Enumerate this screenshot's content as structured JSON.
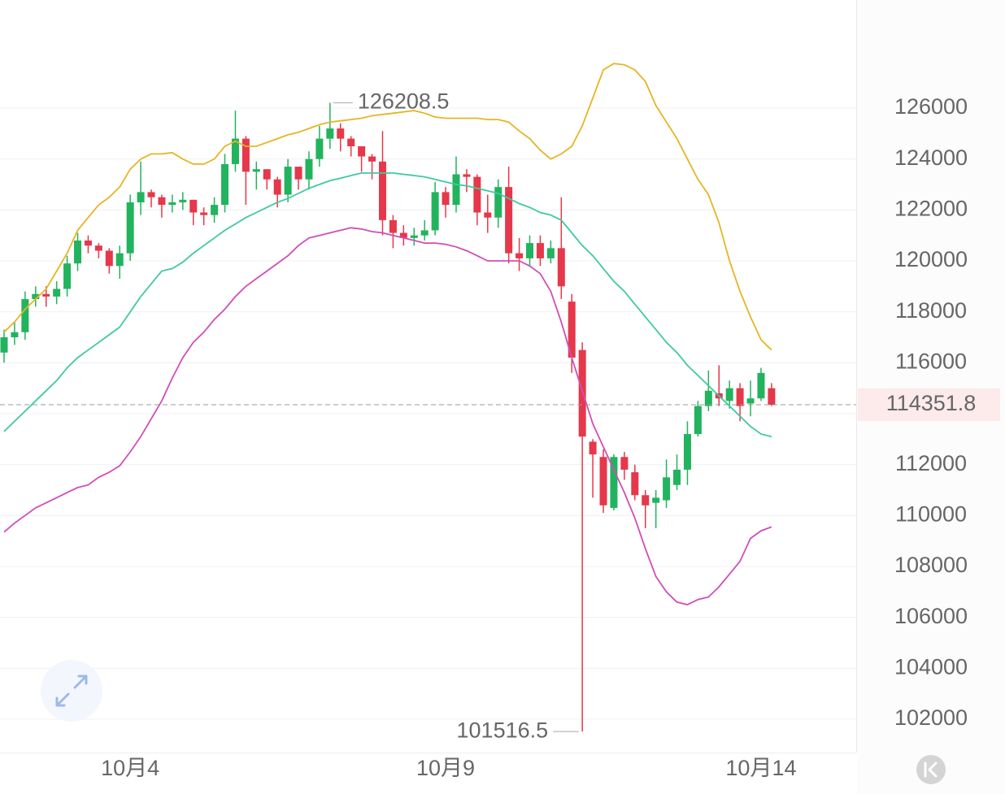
{
  "chart_data": {
    "type": "candlestick",
    "categories": [
      null,
      null,
      null,
      null,
      null,
      null,
      null,
      null,
      null,
      null,
      null,
      null,
      "10月4",
      null,
      null,
      null,
      null,
      null,
      null,
      null,
      null,
      null,
      null,
      null,
      null,
      null,
      null,
      null,
      null,
      null,
      null,
      null,
      null,
      null,
      null,
      null,
      null,
      null,
      null,
      null,
      null,
      null,
      "10月9",
      null,
      null,
      null,
      null,
      null,
      null,
      null,
      null,
      null,
      null,
      null,
      null,
      null,
      null,
      null,
      null,
      null,
      null,
      null,
      null,
      null,
      null,
      null,
      null,
      null,
      null,
      null,
      null,
      null,
      "10月14",
      null
    ],
    "candles": {
      "up_color": "#22b35e",
      "down_color": "#e5384a",
      "open": [
        116400,
        117000,
        117200,
        118500,
        118700,
        118600,
        118900,
        119900,
        120800,
        120600,
        120400,
        119800,
        120300,
        122300,
        122700,
        122500,
        122200,
        122300,
        122400,
        121900,
        121800,
        122200,
        123800,
        124800,
        123500,
        123600,
        123200,
        122600,
        123700,
        123200,
        124000,
        124800,
        125200,
        124800,
        124500,
        124100,
        123900,
        121600,
        121100,
        120900,
        121000,
        121200,
        122700,
        122200,
        123400,
        123300,
        121900,
        121700,
        122900,
        120300,
        120100,
        120700,
        120100,
        120500,
        118400,
        116500,
        112900,
        112300,
        110300,
        112300,
        111700,
        110800,
        110500,
        110600,
        111200,
        111800,
        113200,
        114300,
        114800,
        114500,
        115000,
        114400,
        114600,
        115000
      ],
      "high": [
        117300,
        117600,
        118800,
        119000,
        119000,
        119200,
        120200,
        121100,
        121000,
        120700,
        120500,
        120600,
        122600,
        123900,
        122800,
        122600,
        122600,
        122700,
        122400,
        122100,
        122500,
        124200,
        125900,
        124900,
        123900,
        123600,
        123300,
        124000,
        123600,
        124300,
        125300,
        126208.5,
        125400,
        124900,
        124500,
        124200,
        125100,
        121800,
        121400,
        121300,
        121600,
        123100,
        122900,
        124100,
        123600,
        123400,
        122600,
        123200,
        123700,
        120900,
        121000,
        121000,
        120800,
        122500,
        118700,
        116800,
        113000,
        112600,
        112400,
        112500,
        112000,
        111000,
        111000,
        112200,
        112400,
        113700,
        114500,
        115700,
        115900,
        115300,
        115200,
        115300,
        115800,
        115200
      ],
      "low": [
        116000,
        116700,
        116900,
        118200,
        118200,
        118300,
        118600,
        119600,
        120300,
        120100,
        119500,
        119300,
        120000,
        121800,
        122100,
        121700,
        121900,
        122000,
        121400,
        121400,
        121500,
        121900,
        123500,
        122200,
        122800,
        122800,
        122100,
        122300,
        122800,
        122800,
        123700,
        124400,
        124300,
        124100,
        123500,
        123200,
        121000,
        120500,
        120600,
        120600,
        120800,
        121000,
        121700,
        121900,
        122700,
        121400,
        121100,
        121300,
        119900,
        119600,
        119800,
        119800,
        119900,
        118500,
        115600,
        101516.5,
        110700,
        110100,
        110200,
        111400,
        110600,
        109500,
        109500,
        110300,
        111000,
        111200,
        113100,
        114100,
        114300,
        114200,
        113700,
        113900,
        114500,
        114300
      ],
      "close": [
        117000,
        117200,
        118500,
        118700,
        118600,
        118900,
        119900,
        120800,
        120600,
        120400,
        119800,
        120300,
        122300,
        122700,
        122500,
        122200,
        122300,
        122400,
        121900,
        121800,
        122200,
        123800,
        124800,
        123500,
        123600,
        123200,
        122600,
        123700,
        123200,
        124000,
        124800,
        125200,
        124800,
        124500,
        124100,
        123900,
        121600,
        121100,
        120900,
        121000,
        121200,
        122700,
        122200,
        123400,
        123300,
        121900,
        121700,
        122900,
        120300,
        120100,
        120700,
        120100,
        120500,
        119000,
        116200,
        113100,
        112400,
        110400,
        112300,
        111800,
        110800,
        110400,
        110700,
        111500,
        111800,
        113200,
        114300,
        114900,
        114600,
        115000,
        114300,
        114600,
        115600,
        114351.8
      ]
    },
    "bands": [
      {
        "color": "#e6b522",
        "values": [
          117200,
          117600,
          118100,
          118500,
          118900,
          119600,
          120300,
          121200,
          121700,
          122200,
          122500,
          122900,
          123600,
          124000,
          124200,
          124200,
          124250,
          124000,
          123800,
          123800,
          124000,
          124500,
          124700,
          124500,
          124500,
          124650,
          124800,
          124950,
          125050,
          125200,
          125350,
          125450,
          125500,
          125550,
          125600,
          125700,
          125750,
          125800,
          125850,
          125900,
          125800,
          125650,
          125600,
          125600,
          125600,
          125600,
          125550,
          125550,
          125450,
          125100,
          124800,
          124350,
          124000,
          124200,
          124500,
          125300,
          126400,
          127500,
          127750,
          127700,
          127500,
          127050,
          126100,
          125450,
          124800,
          124000,
          123200,
          122600,
          121500,
          120000,
          118800,
          117800,
          116900,
          116500
        ]
      },
      {
        "color": "#3ec9a2",
        "values": [
          113300,
          113700,
          114100,
          114500,
          114900,
          115300,
          115800,
          116200,
          116500,
          116800,
          117100,
          117400,
          118000,
          118600,
          119100,
          119600,
          119700,
          119950,
          120300,
          120600,
          120900,
          121200,
          121450,
          121700,
          121900,
          122100,
          122300,
          122450,
          122650,
          122850,
          123000,
          123150,
          123250,
          123350,
          123450,
          123450,
          123450,
          123450,
          123400,
          123350,
          123300,
          123200,
          123100,
          123000,
          122950,
          122850,
          122750,
          122650,
          122450,
          122250,
          122100,
          121900,
          121800,
          121600,
          121100,
          120600,
          120200,
          119700,
          119200,
          118800,
          118300,
          117800,
          117300,
          116800,
          116400,
          115900,
          115500,
          115100,
          114700,
          114300,
          113900,
          113500,
          113200,
          113100
        ]
      },
      {
        "color": "#d14db9",
        "values": [
          109350,
          109700,
          110000,
          110300,
          110500,
          110700,
          110900,
          111100,
          111200,
          111500,
          111700,
          111950,
          112500,
          113100,
          113800,
          114500,
          115400,
          116200,
          116800,
          117200,
          117700,
          118100,
          118600,
          119000,
          119300,
          119600,
          119900,
          120200,
          120600,
          120900,
          121000,
          121100,
          121200,
          121300,
          121250,
          121150,
          121100,
          121000,
          120900,
          120800,
          120700,
          120700,
          120650,
          120550,
          120400,
          120200,
          120000,
          120000,
          120000,
          120000,
          119800,
          119500,
          118800,
          117600,
          116200,
          114900,
          113600,
          112700,
          111800,
          110900,
          109900,
          108700,
          107600,
          107000,
          106600,
          106500,
          106700,
          106800,
          107200,
          107700,
          108200,
          109100,
          109400,
          109550
        ]
      }
    ],
    "ylim": [
      100692,
      130245
    ],
    "yticks": [
      102000,
      104000,
      106000,
      108000,
      110000,
      112000,
      114000,
      116000,
      118000,
      120000,
      122000,
      124000,
      126000
    ],
    "grid": true
  }
}
